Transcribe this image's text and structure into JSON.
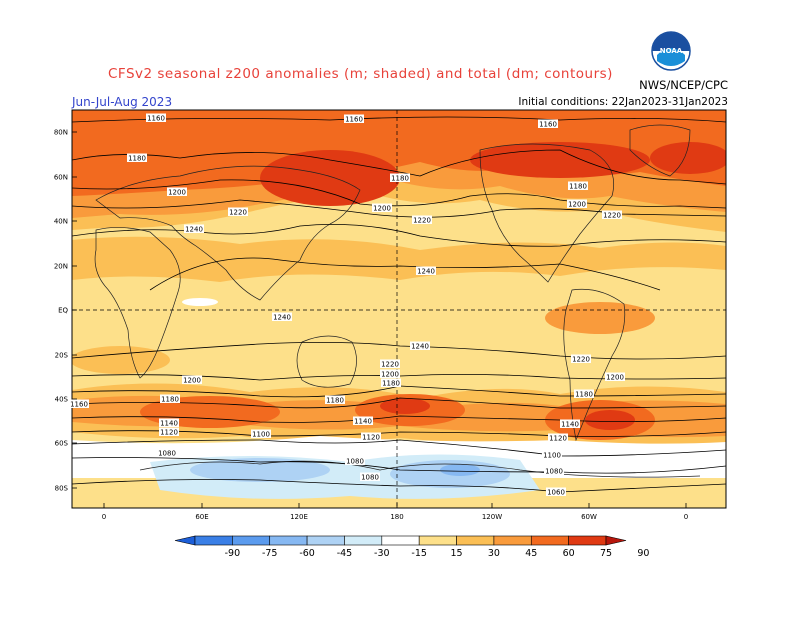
{
  "header": {
    "title": "CFSv2 seasonal z200 anomalies (m; shaded) and total (dm; contours)",
    "season": "Jun-Jul-Aug 2023",
    "initial_conditions": "Initial conditions: 22Jan2023-31Jan2023",
    "credit": "NWS/NCEP/CPC",
    "logo_text": "NOAA"
  },
  "axes": {
    "lat_labels": [
      "80N",
      "60N",
      "40N",
      "20N",
      "EQ",
      "20S",
      "40S",
      "60S",
      "80S"
    ],
    "lon_labels": [
      "0",
      "60E",
      "120E",
      "180",
      "120W",
      "60W",
      "0"
    ]
  },
  "contour_labels": [
    "1160",
    "1160",
    "1160",
    "1180",
    "1180",
    "1180",
    "1200",
    "1200",
    "1200",
    "1220",
    "1220",
    "1220",
    "1240",
    "1240",
    "1240",
    "1240",
    "1220",
    "1200",
    "1180",
    "1220",
    "1200",
    "1200",
    "1180",
    "1180",
    "1180",
    "1160",
    "1140",
    "1120",
    "1140",
    "1120",
    "1140",
    "1120",
    "1100",
    "1100",
    "1080",
    "1080",
    "1080",
    "1080",
    "1060"
  ],
  "colorbar": {
    "levels": [
      "-90",
      "-75",
      "-60",
      "-45",
      "-30",
      "-15",
      "15",
      "30",
      "45",
      "60",
      "75",
      "90"
    ],
    "colors": [
      "#1c5ed8",
      "#3a7fe6",
      "#5b9bee",
      "#86b8f2",
      "#aed2f4",
      "#d2ecf8",
      "#ffffff",
      "#fde08a",
      "#fbbf55",
      "#f99b3c",
      "#f26a1f",
      "#e03a13",
      "#b7160c"
    ]
  }
}
